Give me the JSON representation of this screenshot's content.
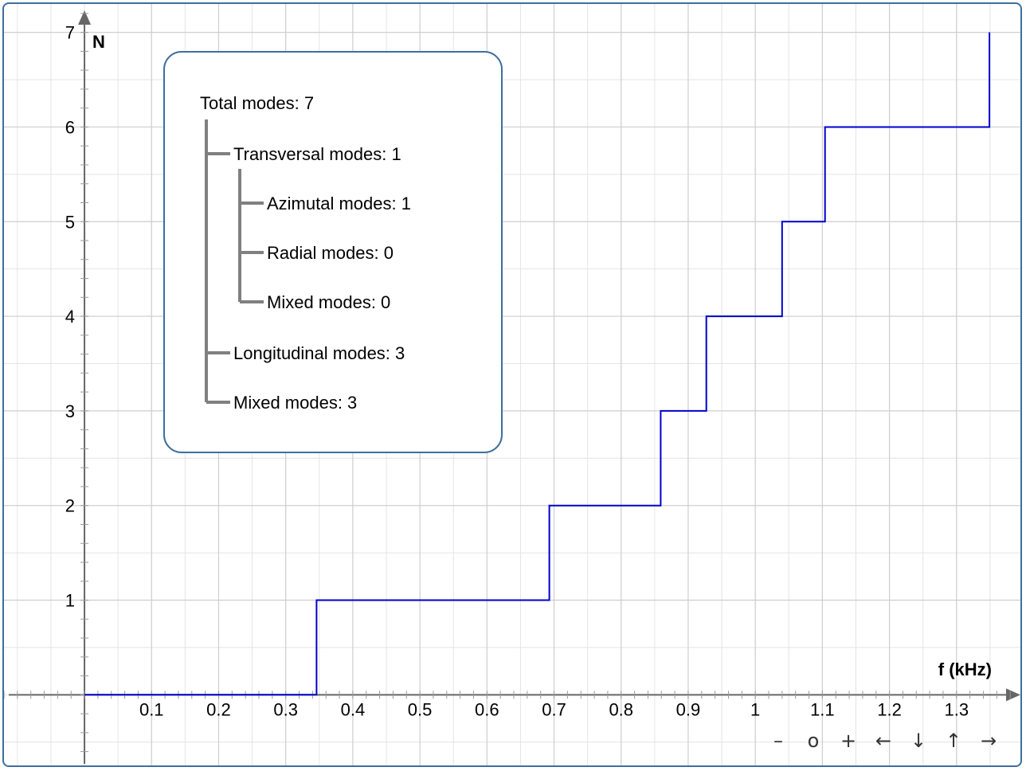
{
  "chart_data": {
    "type": "line",
    "step": true,
    "xlabel": "f (kHz)",
    "ylabel": "N",
    "xlim": [
      -0.12,
      1.4
    ],
    "ylim": [
      -0.78,
      7.3
    ],
    "grid": true,
    "x_ticks": [
      0.1,
      0.2,
      0.3,
      0.4,
      0.5,
      0.6,
      0.7,
      0.8,
      0.9,
      1,
      1.1,
      1.2,
      1.3
    ],
    "x_tick_labels": [
      "0.1",
      "0.2",
      "0.3",
      "0.4",
      "0.5",
      "0.6",
      "0.7",
      "0.8",
      "0.9",
      "1",
      "1.1",
      "1.2",
      "1.3"
    ],
    "y_ticks": [
      1,
      2,
      3,
      4,
      5,
      6,
      7
    ],
    "y_tick_labels": [
      "1",
      "2",
      "3",
      "4",
      "5",
      "6",
      "7"
    ],
    "series": [
      {
        "color": "#0000cc",
        "x": [
          0,
          0.346,
          0.346,
          0.693,
          0.693,
          0.859,
          0.859,
          0.927,
          0.927,
          1.04,
          1.04,
          1.104,
          1.104,
          1.349,
          1.349
        ],
        "y": [
          0,
          0,
          1,
          1,
          2,
          2,
          3,
          3,
          4,
          4,
          5,
          5,
          6,
          6,
          7
        ]
      }
    ]
  },
  "info_box": {
    "total": "Total modes: 7",
    "transversal": "Transversal modes: 1",
    "azimutal": "Azimutal modes: 1",
    "radial": "Radial modes: 0",
    "mixed_transversal": "Mixed modes: 0",
    "longitudinal": "Longitudinal modes: 3",
    "mixed": "Mixed modes: 3"
  },
  "controls": {
    "zoom_out": "–",
    "reset": "o",
    "zoom_in": "+",
    "pan_left": "←",
    "pan_down": "↓",
    "pan_up": "↑",
    "pan_right": "→"
  }
}
